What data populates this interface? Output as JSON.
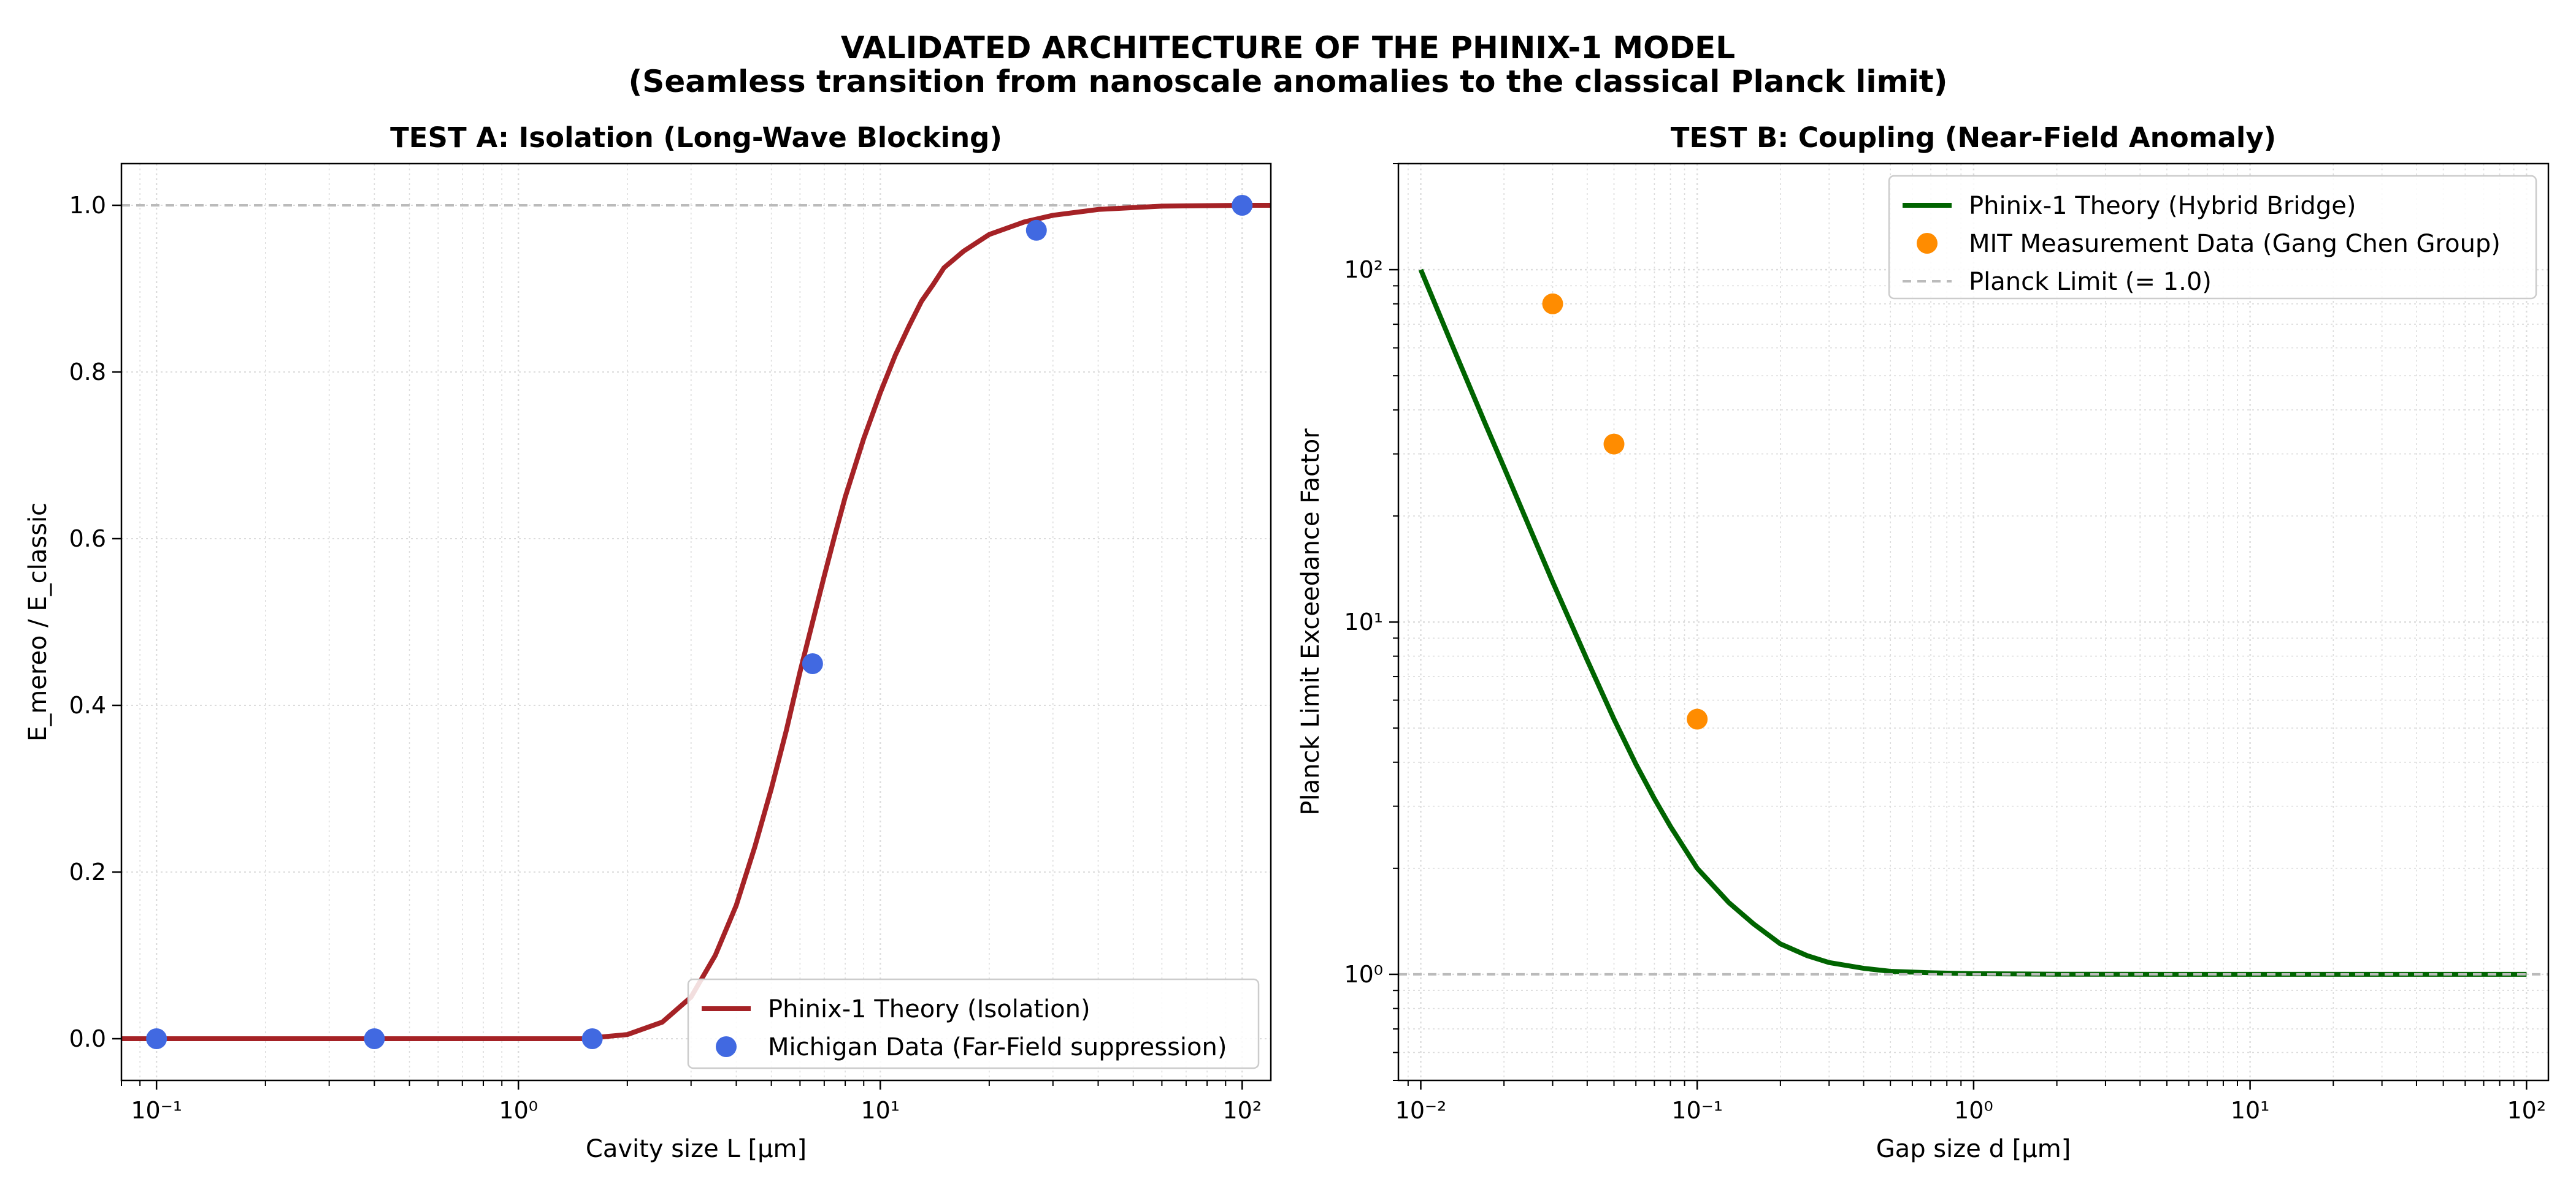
{
  "figure": {
    "title_line1": "VALIDATED ARCHITECTURE OF THE PHINIX-1 MODEL",
    "title_line2": "(Seamless transition from nanoscale anomalies to the classical Planck limit)"
  },
  "chart_data": [
    {
      "id": "test_a",
      "type": "line",
      "title": "TEST A: Isolation (Long-Wave Blocking)",
      "xlabel": "Cavity size L [µm]",
      "ylabel": "E_mereo / E_classic",
      "xscale": "log",
      "yscale": "linear",
      "xlim": [
        0.08,
        120
      ],
      "ylim": [
        -0.05,
        1.05
      ],
      "xticks": [
        {
          "value": 0.1,
          "label": "10⁻¹"
        },
        {
          "value": 1,
          "label": "10⁰"
        },
        {
          "value": 10,
          "label": "10¹"
        },
        {
          "value": 100,
          "label": "10²"
        }
      ],
      "yticks": [
        {
          "value": 0.0,
          "label": "0.0"
        },
        {
          "value": 0.2,
          "label": "0.2"
        },
        {
          "value": 0.4,
          "label": "0.4"
        },
        {
          "value": 0.6,
          "label": "0.6"
        },
        {
          "value": 0.8,
          "label": "0.8"
        },
        {
          "value": 1.0,
          "label": "1.0"
        }
      ],
      "grid": true,
      "legend_position": "lower-right",
      "reference_line": {
        "y": 1.0,
        "color": "#bbbbbb",
        "style": "dashed"
      },
      "series": [
        {
          "name": "Phinix-1 Theory (Isolation)",
          "kind": "line",
          "color": "#a52226",
          "x": [
            0.08,
            0.5,
            1,
            1.5,
            2,
            2.5,
            3,
            3.5,
            4,
            4.5,
            5,
            5.5,
            6,
            6.5,
            7,
            7.5,
            8,
            9,
            10,
            11,
            12,
            13,
            14,
            15,
            17,
            20,
            25,
            30,
            40,
            60,
            100,
            120
          ],
          "y": [
            0.0,
            0.0,
            0.0,
            0.0,
            0.005,
            0.02,
            0.05,
            0.1,
            0.16,
            0.23,
            0.3,
            0.37,
            0.44,
            0.5,
            0.555,
            0.605,
            0.65,
            0.72,
            0.775,
            0.82,
            0.855,
            0.885,
            0.905,
            0.925,
            0.945,
            0.965,
            0.98,
            0.988,
            0.995,
            0.999,
            1.0,
            1.0
          ]
        },
        {
          "name": "Michigan Data (Far-Field suppression)",
          "kind": "scatter",
          "color": "#4169e1",
          "x": [
            0.1,
            0.4,
            1.6,
            6.5,
            27,
            100
          ],
          "y": [
            0.0,
            0.0,
            0.0,
            0.45,
            0.97,
            1.0
          ]
        }
      ]
    },
    {
      "id": "test_b",
      "type": "line",
      "title": "TEST B: Coupling (Near-Field Anomaly)",
      "xlabel": "Gap size d [µm]",
      "ylabel": "Planck Limit Exceedance Factor",
      "xscale": "log",
      "yscale": "log",
      "xlim": [
        0.0083,
        120
      ],
      "ylim": [
        0.5,
        200
      ],
      "xticks": [
        {
          "value": 0.01,
          "label": "10⁻²"
        },
        {
          "value": 0.1,
          "label": "10⁻¹"
        },
        {
          "value": 1,
          "label": "10⁰"
        },
        {
          "value": 10,
          "label": "10¹"
        },
        {
          "value": 100,
          "label": "10²"
        }
      ],
      "yticks": [
        {
          "value": 1,
          "label": "10⁰"
        },
        {
          "value": 10,
          "label": "10¹"
        },
        {
          "value": 100,
          "label": "10²"
        }
      ],
      "grid": true,
      "legend_position": "upper-right",
      "series": [
        {
          "name": "Phinix-1 Theory (Hybrid Bridge)",
          "kind": "line",
          "color": "#006400",
          "x": [
            0.01,
            0.013,
            0.017,
            0.02,
            0.025,
            0.03,
            0.04,
            0.05,
            0.06,
            0.07,
            0.08,
            0.1,
            0.13,
            0.16,
            0.2,
            0.25,
            0.3,
            0.4,
            0.5,
            0.7,
            1,
            2,
            5,
            10,
            100
          ],
          "y": [
            100,
            61,
            37,
            27.5,
            18.2,
            13,
            7.8,
            5.3,
            3.95,
            3.15,
            2.63,
            2.0,
            1.6,
            1.39,
            1.22,
            1.13,
            1.08,
            1.04,
            1.02,
            1.01,
            1.004,
            1.001,
            1.0,
            1.0,
            1.0
          ]
        },
        {
          "name": "MIT Measurement Data (Gang Chen Group)",
          "kind": "scatter",
          "color": "#ff8c00",
          "x": [
            0.03,
            0.05,
            0.1
          ],
          "y": [
            80,
            32,
            5.3
          ]
        },
        {
          "name": "Planck Limit (= 1.0)",
          "kind": "hline",
          "color": "#bbbbbb",
          "style": "dashed",
          "y": 1.0
        }
      ]
    }
  ]
}
